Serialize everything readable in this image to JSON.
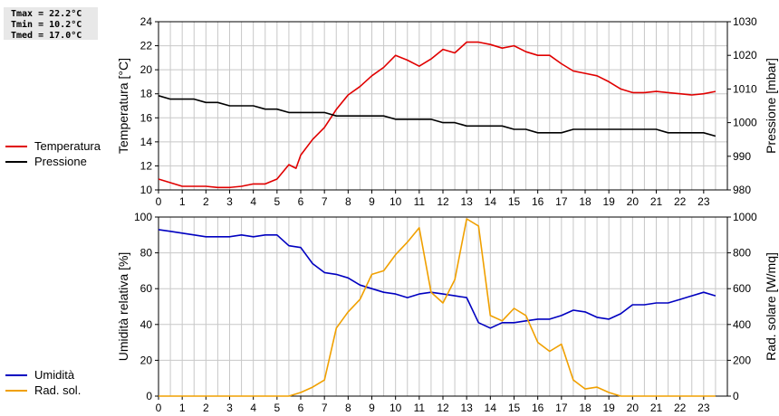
{
  "stats": {
    "tmax": "Tmax = 22.2°C",
    "tmin": "Tmin = 10.2°C",
    "tmed": "Tmed = 17.0°C"
  },
  "colors": {
    "temperatura": "#e00000",
    "pressione": "#000000",
    "umidita": "#0000c0",
    "radsol": "#f0a000",
    "grid": "#c8c8c8"
  },
  "chart_data": [
    {
      "type": "line",
      "ylabel_left": "Temperatura [°C]",
      "ylabel_right": "Pressione [mbar]",
      "xlim": [
        0,
        24
      ],
      "ylim_left": [
        10,
        24
      ],
      "ylim_right": [
        980,
        1030
      ],
      "x_ticks": [
        "0",
        "1",
        "2",
        "3",
        "4",
        "5",
        "6",
        "7",
        "8",
        "9",
        "10",
        "11",
        "12",
        "13",
        "14",
        "15",
        "16",
        "17",
        "18",
        "19",
        "20",
        "21",
        "22",
        "23"
      ],
      "y_ticks_left": [
        "10",
        "12",
        "14",
        "16",
        "18",
        "20",
        "22",
        "24"
      ],
      "y_ticks_right": [
        "980",
        "990",
        "1000",
        "1010",
        "1020",
        "1030"
      ],
      "grid": true,
      "legend": "left",
      "series": [
        {
          "name": "Temperatura",
          "axis": "left",
          "x": [
            0,
            0.5,
            1,
            1.5,
            2,
            2.5,
            3,
            3.5,
            4,
            4.5,
            5,
            5.5,
            5.8,
            6,
            6.5,
            7,
            7.5,
            8,
            8.5,
            9,
            9.5,
            10,
            10.5,
            11,
            11.5,
            12,
            12.5,
            13,
            13.5,
            14,
            14.5,
            15,
            15.5,
            16,
            16.5,
            17,
            17.5,
            18,
            18.5,
            19,
            19.5,
            20,
            20.5,
            21,
            21.5,
            22,
            22.5,
            23,
            23.5
          ],
          "y": [
            10.9,
            10.6,
            10.3,
            10.3,
            10.3,
            10.2,
            10.2,
            10.3,
            10.5,
            10.5,
            10.9,
            12.1,
            11.8,
            12.9,
            14.2,
            15.2,
            16.7,
            17.9,
            18.6,
            19.5,
            20.2,
            21.2,
            20.8,
            20.3,
            20.9,
            21.7,
            21.4,
            22.3,
            22.3,
            22.1,
            21.8,
            22.0,
            21.5,
            21.2,
            21.2,
            20.5,
            19.9,
            19.7,
            19.5,
            19.0,
            18.4,
            18.1,
            18.1,
            18.2,
            18.1,
            18.0,
            17.9,
            18.0,
            18.2
          ]
        },
        {
          "name": "Pressione",
          "axis": "right",
          "x": [
            0,
            0.5,
            1,
            1.5,
            2,
            2.5,
            3,
            3.5,
            4,
            4.5,
            5,
            5.5,
            6,
            6.5,
            7,
            7.5,
            8,
            8.5,
            9,
            9.5,
            10,
            10.5,
            11,
            11.5,
            12,
            12.5,
            13,
            13.5,
            14,
            14.5,
            15,
            15.5,
            16,
            16.5,
            17,
            17.5,
            18,
            18.5,
            19,
            19.5,
            20,
            20.5,
            21,
            21.5,
            22,
            22.5,
            23,
            23.5
          ],
          "y": [
            1008,
            1007,
            1007,
            1007,
            1006,
            1006,
            1005,
            1005,
            1005,
            1004,
            1004,
            1003,
            1003,
            1003,
            1003,
            1002,
            1002,
            1002,
            1002,
            1002,
            1001,
            1001,
            1001,
            1001,
            1000,
            1000,
            999,
            999,
            999,
            999,
            998,
            998,
            997,
            997,
            997,
            998,
            998,
            998,
            998,
            998,
            998,
            998,
            998,
            997,
            997,
            997,
            997,
            996
          ]
        }
      ]
    },
    {
      "type": "line",
      "ylabel_left": "Umidità relativa [%]",
      "ylabel_right": "Rad. solare [W/mq]",
      "xlim": [
        0,
        24
      ],
      "ylim_left": [
        0,
        100
      ],
      "ylim_right": [
        0,
        1000
      ],
      "x_ticks": [
        "0",
        "1",
        "2",
        "3",
        "4",
        "5",
        "6",
        "7",
        "8",
        "9",
        "10",
        "11",
        "12",
        "13",
        "14",
        "15",
        "16",
        "17",
        "18",
        "19",
        "20",
        "21",
        "22",
        "23"
      ],
      "y_ticks_left": [
        "0",
        "20",
        "40",
        "60",
        "80",
        "100"
      ],
      "y_ticks_right": [
        "0",
        "200",
        "400",
        "600",
        "800",
        "1000"
      ],
      "grid": true,
      "legend": "left",
      "series": [
        {
          "name": "Umidità",
          "axis": "left",
          "x": [
            0,
            0.5,
            1,
            1.5,
            2,
            2.5,
            3,
            3.5,
            4,
            4.5,
            5,
            5.5,
            6,
            6.5,
            7,
            7.5,
            8,
            8.5,
            9,
            9.5,
            10,
            10.5,
            11,
            11.5,
            12,
            12.5,
            13,
            13.5,
            14,
            14.5,
            15,
            15.5,
            16,
            16.5,
            17,
            17.5,
            18,
            18.5,
            19,
            19.5,
            20,
            20.5,
            21,
            21.5,
            22,
            22.5,
            23,
            23.5
          ],
          "y": [
            93,
            92,
            91,
            90,
            89,
            89,
            89,
            90,
            89,
            90,
            90,
            84,
            83,
            74,
            69,
            68,
            66,
            62,
            60,
            58,
            57,
            55,
            57,
            58,
            57,
            56,
            55,
            41,
            38,
            41,
            41,
            42,
            43,
            43,
            45,
            48,
            47,
            44,
            43,
            46,
            51,
            51,
            52,
            52,
            54,
            56,
            58,
            56
          ]
        },
        {
          "name": "Rad. sol.",
          "axis": "right",
          "x": [
            0,
            0.5,
            1,
            1.5,
            2,
            2.5,
            3,
            3.5,
            4,
            4.5,
            5,
            5.5,
            6,
            6.5,
            7,
            7.5,
            8,
            8.5,
            9,
            9.5,
            10,
            10.5,
            11,
            11.5,
            12,
            12.5,
            13,
            13.5,
            14,
            14.5,
            15,
            15.5,
            16,
            16.5,
            17,
            17.5,
            18,
            18.5,
            19,
            19.5,
            20,
            20.5,
            21,
            21.5,
            22,
            22.5,
            23,
            23.5
          ],
          "y": [
            0,
            0,
            0,
            0,
            0,
            0,
            0,
            0,
            0,
            0,
            0,
            0,
            20,
            50,
            90,
            380,
            470,
            540,
            680,
            700,
            790,
            860,
            940,
            580,
            520,
            650,
            990,
            950,
            450,
            420,
            490,
            450,
            300,
            250,
            290,
            90,
            40,
            50,
            20,
            0,
            0,
            0,
            0,
            0,
            0,
            0,
            0,
            0
          ]
        }
      ]
    }
  ]
}
